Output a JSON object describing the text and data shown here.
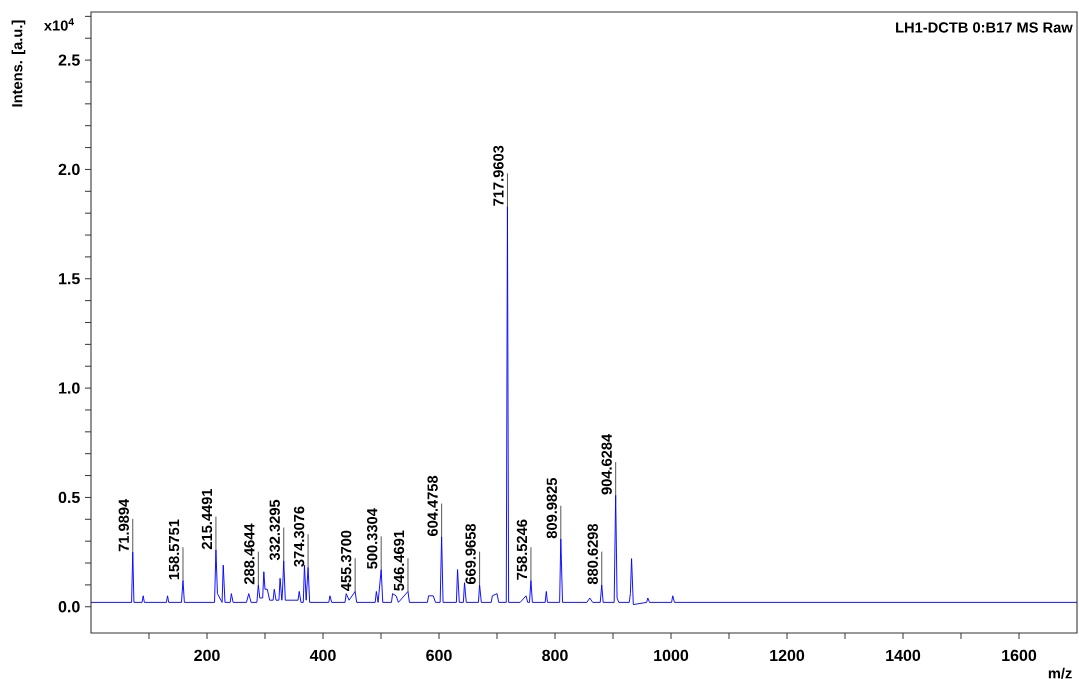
{
  "chart_data": {
    "type": "line",
    "title": "LH1-DCTB 0:B17 MS Raw",
    "xlabel": "m/z",
    "ylabel": "Intens. [a.u.]",
    "xlim": [
      0,
      1700
    ],
    "ylim": [
      -0.12,
      2.72
    ],
    "xticks": [
      {
        "value": 100,
        "label": null
      },
      200,
      {
        "value": 300,
        "label": null
      },
      400,
      {
        "value": 500,
        "label": null
      },
      600,
      {
        "value": 700,
        "label": null
      },
      800,
      {
        "value": 900,
        "label": null
      },
      1000,
      {
        "value": 1100,
        "label": null
      },
      1200,
      {
        "value": 1300,
        "label": null
      },
      1400,
      {
        "value": 1500,
        "label": null
      },
      1600
    ],
    "yticks": [
      {
        "value": 0,
        "label": "0.0"
      },
      {
        "value": 0.1,
        "label": null
      },
      {
        "value": 0.2,
        "label": null
      },
      {
        "value": 0.3,
        "label": null
      },
      {
        "value": 0.4,
        "label": null
      },
      0.5,
      {
        "value": 0.6,
        "label": null
      },
      {
        "value": 0.7,
        "label": null
      },
      {
        "value": 0.8,
        "label": null
      },
      {
        "value": 0.9,
        "label": null
      },
      {
        "value": 1,
        "label": "1.0"
      },
      {
        "value": 1.1,
        "label": null
      },
      {
        "value": 1.2,
        "label": null
      },
      {
        "value": 1.3,
        "label": null
      },
      {
        "value": 1.4,
        "label": null
      },
      1.5,
      {
        "value": 1.6,
        "label": null
      },
      {
        "value": 1.7,
        "label": null
      },
      {
        "value": 1.8,
        "label": null
      },
      {
        "value": 1.9,
        "label": null
      },
      {
        "value": 2,
        "label": "2.0"
      },
      {
        "value": 2.1,
        "label": null
      },
      {
        "value": 2.2,
        "label": null
      },
      {
        "value": 2.3,
        "label": null
      },
      {
        "value": 2.4,
        "label": null
      },
      2.5,
      {
        "value": 2.6,
        "label": null
      },
      {
        "value": 2.7,
        "label": null
      }
    ],
    "series": [
      {
        "color": "#0000ff",
        "x": [
          0,
          60,
          70,
          72,
          74,
          88,
          90,
          92,
          130,
          132,
          134,
          156,
          158.6,
          161,
          213,
          215.4,
          218,
          226,
          228,
          231,
          240,
          242,
          245,
          268,
          272,
          276,
          286,
          288.5,
          291,
          296,
          298,
          300,
          304,
          308,
          314,
          316,
          319,
          324,
          326,
          329,
          330,
          332.3,
          335,
          357,
          359,
          362,
          366,
          368,
          371,
          374.3,
          377,
          410,
          412,
          415,
          438,
          440,
          445,
          455.4,
          458,
          490,
          492,
          495,
          500.3,
          503,
          518,
          520,
          526,
          530,
          546.5,
          549,
          580,
          582,
          590,
          594,
          602,
          604.5,
          607,
          630,
          632,
          635,
          642,
          644,
          647,
          668,
          670,
          673,
          690,
          692,
          700,
          703,
          716,
          718,
          720,
          740,
          750,
          753,
          756,
          758.5,
          761,
          783,
          785,
          787,
          808,
          810,
          813,
          855,
          860,
          865,
          878,
          880.6,
          883,
          902,
          904.6,
          907,
          910,
          928,
          930,
          932,
          935,
          958,
          960,
          963,
          1001,
          1003,
          1006,
          1700
        ],
        "values": [
          0.02,
          0.02,
          0.02,
          0.25,
          0.02,
          0.02,
          0.05,
          0.02,
          0.02,
          0.05,
          0.02,
          0.02,
          0.12,
          0.02,
          0.02,
          0.26,
          0.06,
          0.02,
          0.19,
          0.02,
          0.02,
          0.06,
          0.02,
          0.02,
          0.06,
          0.02,
          0.02,
          0.1,
          0.04,
          0.04,
          0.16,
          0.08,
          0.08,
          0.03,
          0.03,
          0.08,
          0.03,
          0.03,
          0.13,
          0.03,
          0.06,
          0.21,
          0.03,
          0.03,
          0.07,
          0.02,
          0.02,
          0.19,
          0.03,
          0.18,
          0.02,
          0.02,
          0.05,
          0.02,
          0.02,
          0.06,
          0.03,
          0.07,
          0.02,
          0.02,
          0.07,
          0.02,
          0.17,
          0.02,
          0.02,
          0.06,
          0.05,
          0.02,
          0.07,
          0.02,
          0.02,
          0.05,
          0.05,
          0.02,
          0.02,
          0.32,
          0.02,
          0.02,
          0.17,
          0.02,
          0.02,
          0.11,
          0.02,
          0.02,
          0.1,
          0.02,
          0.02,
          0.05,
          0.06,
          0.02,
          0.02,
          1.83,
          0.02,
          0.02,
          0.05,
          0.02,
          0.02,
          0.12,
          0.02,
          0.02,
          0.07,
          0.02,
          0.02,
          0.31,
          0.02,
          0.02,
          0.04,
          0.02,
          0.02,
          0.1,
          0.02,
          0.02,
          0.51,
          0.04,
          0.02,
          0.02,
          0.06,
          0.22,
          0.01,
          0.02,
          0.04,
          0.02,
          0.02,
          0.05,
          0.02,
          0.02
        ]
      }
    ],
    "annotations": [
      "x10$^{4}$",
      {
        "text": "71.9894",
        "x": 72,
        "y": 0.25
      },
      {
        "text": "158.5751",
        "x": 158.6,
        "y": 0.12
      },
      {
        "text": "215.4491",
        "x": 215.4,
        "y": 0.26
      },
      {
        "text": "288.4644",
        "x": 288.5,
        "y": 0.1
      },
      {
        "text": "332.3295",
        "x": 332.3,
        "y": 0.21
      },
      {
        "text": "374.3076",
        "x": 374.3,
        "y": 0.18
      },
      {
        "text": "455.3700",
        "x": 455.4,
        "y": 0.07
      },
      {
        "text": "500.3304",
        "x": 500.3,
        "y": 0.17
      },
      {
        "text": "546.4691",
        "x": 546.5,
        "y": 0.07
      },
      {
        "text": "604.4758",
        "x": 604.5,
        "y": 0.32
      },
      {
        "text": "669.9658",
        "x": 670,
        "y": 0.1
      },
      {
        "text": "717.9603",
        "x": 718,
        "y": 1.83
      },
      {
        "text": "758.5246",
        "x": 758.5,
        "y": 0.12
      },
      {
        "text": "809.9825",
        "x": 810,
        "y": 0.31
      },
      {
        "text": "880.6298",
        "x": 880.6,
        "y": 0.1
      },
      {
        "text": "904.6284",
        "x": 904.6,
        "y": 0.51
      }
    ],
    "grid": false,
    "legend": false,
    "marker": "none",
    "line_style": "solid"
  }
}
